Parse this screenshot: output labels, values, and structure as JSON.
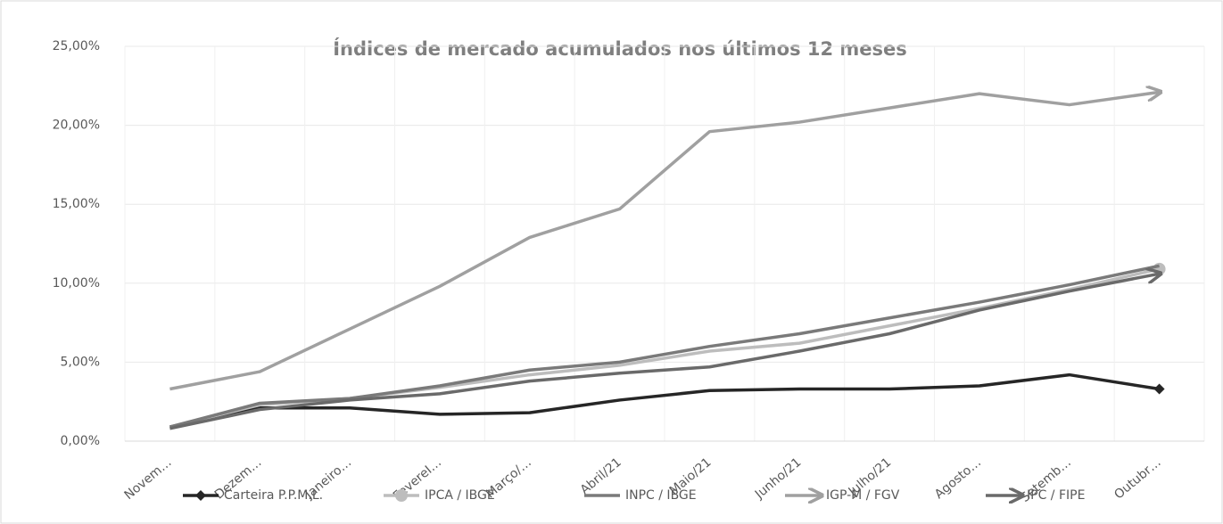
{
  "chart_data": {
    "type": "line",
    "title": "Índices de mercado acumulados nos últimos 12 meses",
    "categories": [
      "Novem…",
      "Dezem…",
      "Janeiro…",
      "FevereI…",
      "Março/…",
      "Abril/21",
      "Maio/21",
      "Junho/21",
      "Julho/21",
      "Agosto…",
      "Setemb…",
      "Outubr…"
    ],
    "series": [
      {
        "name": "Carteira P.P.M.L.",
        "color": "#262626",
        "marker": "diamond",
        "values": [
          0.9,
          2.1,
          2.1,
          1.7,
          1.8,
          2.6,
          3.2,
          3.3,
          3.3,
          3.5,
          4.2,
          3.3
        ]
      },
      {
        "name": "IPCA / IBGE",
        "color": "#bdbdbd",
        "marker": "circle",
        "values": [
          0.9,
          2.3,
          2.7,
          3.4,
          4.2,
          4.8,
          5.7,
          6.2,
          7.3,
          8.4,
          9.6,
          10.9
        ]
      },
      {
        "name": "INPC / IBGE",
        "color": "#7a7a7a",
        "marker": "none",
        "values": [
          0.9,
          2.4,
          2.7,
          3.5,
          4.5,
          5.0,
          6.0,
          6.8,
          7.8,
          8.8,
          9.9,
          11.1
        ]
      },
      {
        "name": "IGP-M / FGV",
        "color": "#a0a0a0",
        "marker": "arrow",
        "values": [
          3.3,
          4.4,
          7.1,
          9.8,
          12.9,
          14.7,
          19.6,
          20.2,
          21.1,
          22.0,
          21.3,
          22.1
        ]
      },
      {
        "name": "IPC / FIPE",
        "color": "#6a6a6a",
        "marker": "arrow",
        "values": [
          0.8,
          2.0,
          2.6,
          3.0,
          3.8,
          4.3,
          4.7,
          5.7,
          6.8,
          8.3,
          9.5,
          10.6
        ]
      }
    ],
    "ylim": [
      0,
      25
    ],
    "yticks": [
      {
        "value": 0,
        "label": "0,00%"
      },
      {
        "value": 5,
        "label": "5,00%"
      },
      {
        "value": 10,
        "label": "10,00%"
      },
      {
        "value": 15,
        "label": "15,00%"
      },
      {
        "value": 20,
        "label": "20,00%"
      },
      {
        "value": 25,
        "label": "25,00%"
      }
    ],
    "grid": true,
    "legend": "bottom"
  }
}
